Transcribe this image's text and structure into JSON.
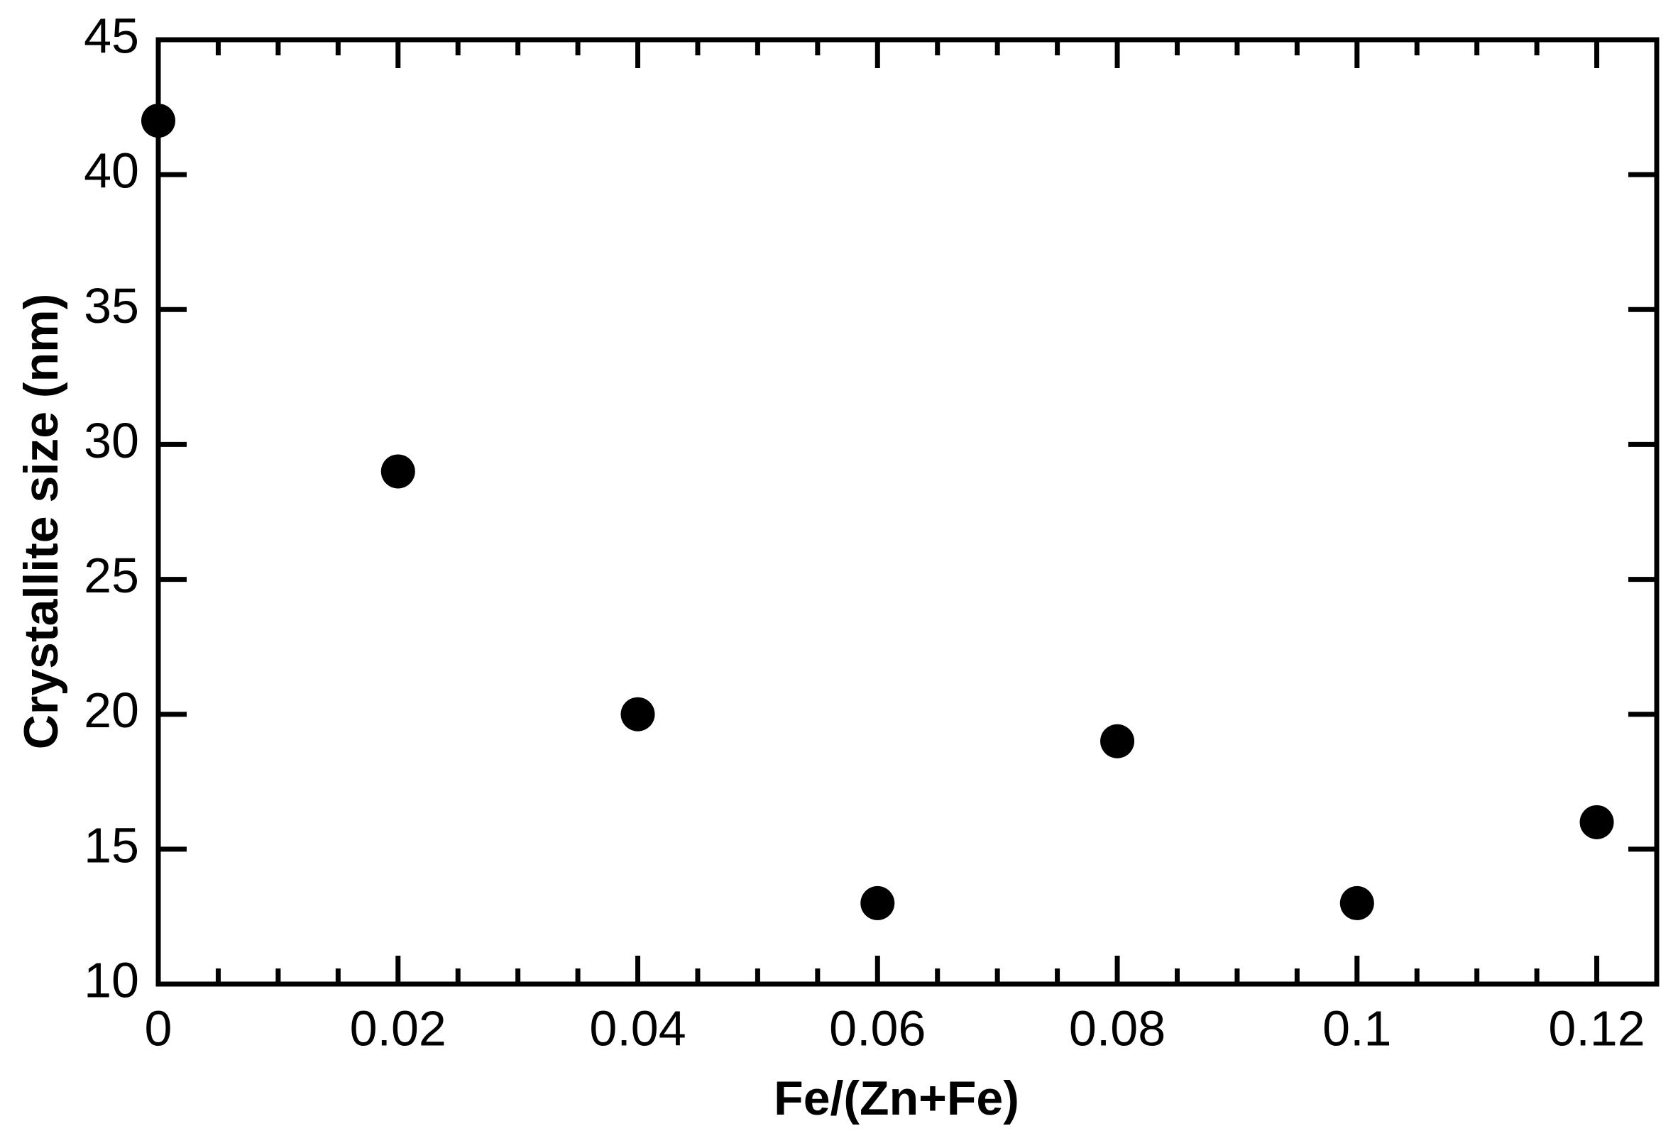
{
  "chart_data": {
    "type": "scatter",
    "x_label": "Fe/(Zn+Fe)",
    "y_label": "Crystallite size (nm)",
    "x": [
      0,
      0.02,
      0.04,
      0.06,
      0.08,
      0.1,
      0.12
    ],
    "values": [
      42,
      29,
      20,
      13,
      19,
      13,
      16
    ],
    "color": "#000000",
    "xlim": [
      0,
      0.125
    ],
    "ylim": [
      10,
      45
    ],
    "xticks": [
      0,
      0.02,
      0.04,
      0.06,
      0.08,
      0.1,
      0.12
    ],
    "xminorticks": [
      0.005,
      0.01,
      0.015,
      0.025,
      0.03,
      0.035,
      0.045,
      0.05,
      0.055,
      0.065,
      0.07,
      0.075,
      0.085,
      0.09,
      0.095,
      0.105,
      0.11,
      0.115
    ],
    "yticks": [
      10,
      15,
      20,
      25,
      30,
      35,
      40,
      45
    ],
    "grid": false
  }
}
